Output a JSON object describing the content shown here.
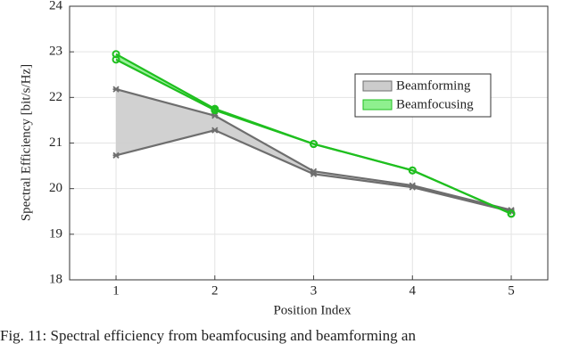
{
  "chart_data": {
    "type": "band",
    "x_label": "Position Index",
    "y_label": "Spectral Efficiency [bit/s/Hz]",
    "caption": "Fig. 11: Spectral efficiency from beamfocusing and beamforming an",
    "x": [
      1,
      2,
      3,
      4,
      5
    ],
    "xlim": [
      0.53,
      5.37
    ],
    "xticks": [
      1,
      2,
      3,
      4,
      5
    ],
    "ylim": [
      18,
      24
    ],
    "yticks": [
      18,
      19,
      20,
      21,
      22,
      23,
      24
    ],
    "grid": true,
    "legend": "upper right",
    "series": [
      {
        "name": "Beamforming",
        "color": "#6e6e6e",
        "fill": "#cccccc",
        "marker": "star",
        "values": [
          22.18,
          21.6,
          20.38,
          20.07,
          19.53
        ],
        "lower": [
          20.73,
          21.28,
          20.32,
          20.03,
          19.5
        ]
      },
      {
        "name": "Beamfocusing",
        "color": "#1fbf1f",
        "fill": "#8ff08f",
        "marker": "circle",
        "values": [
          22.95,
          21.75,
          20.98,
          20.4,
          19.45
        ],
        "lower": [
          22.83,
          21.72,
          20.98,
          20.4,
          19.45
        ]
      }
    ]
  }
}
